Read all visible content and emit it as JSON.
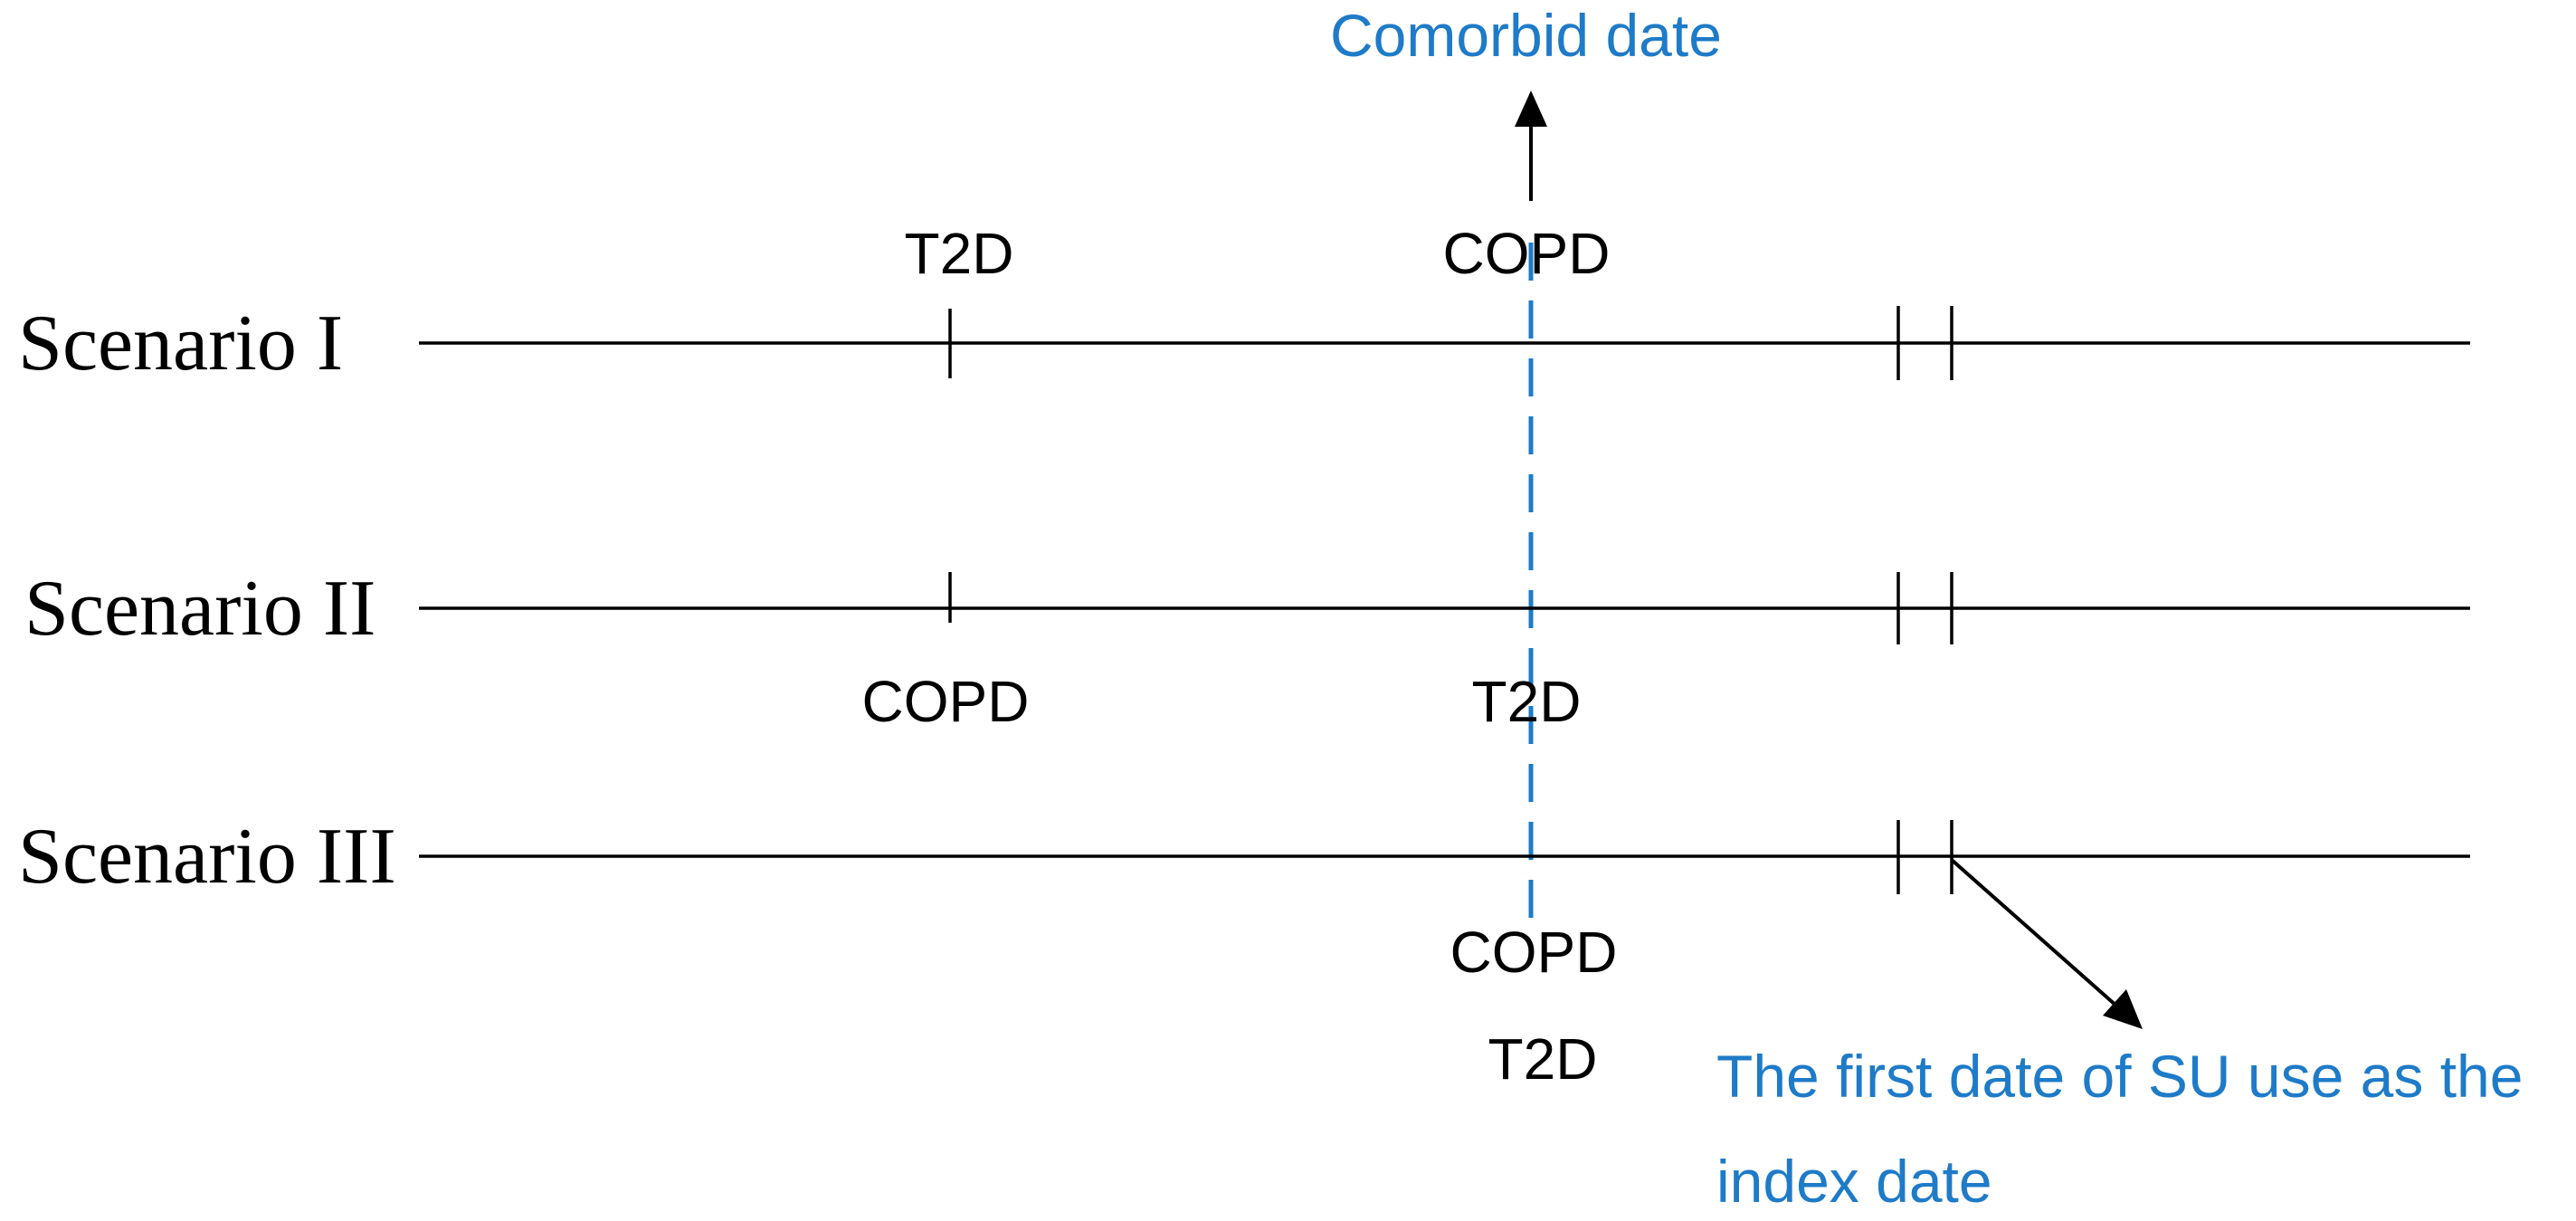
{
  "colors": {
    "timeline": "#000000",
    "highlight": "#1e7bc8"
  },
  "annotations": {
    "comorbid_date": "Comorbid date",
    "index_date_line1": "The first date of SU use as the",
    "index_date_line2": "index date"
  },
  "scenarios": [
    {
      "label": "Scenario I",
      "events_above": {
        "first": "T2D",
        "second": "COPD"
      }
    },
    {
      "label": "Scenario II",
      "events_below": {
        "first": "COPD",
        "second": "T2D"
      }
    },
    {
      "label": "Scenario III",
      "events_below": {
        "second_line1": "COPD",
        "second_line2": "T2D"
      }
    }
  ]
}
